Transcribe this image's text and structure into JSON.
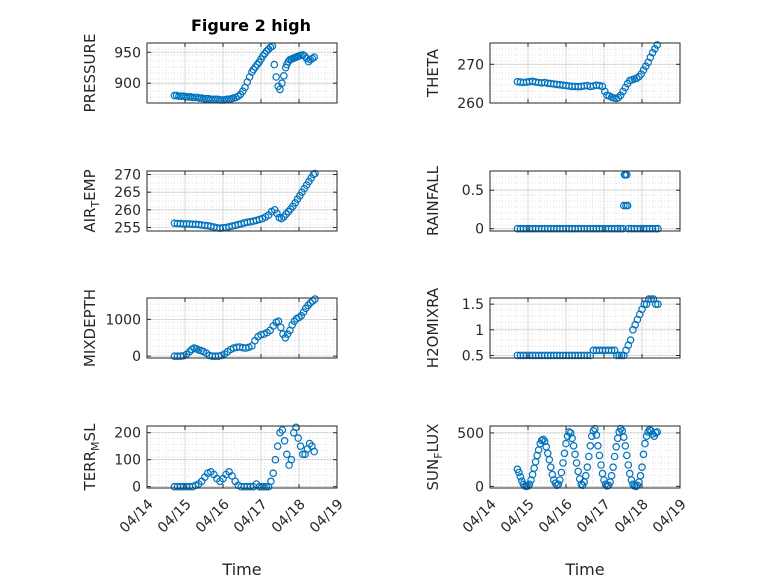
{
  "figure": {
    "title": "Figure 2 high"
  },
  "colors": {
    "marker": "#0072bd",
    "axis": "#262626",
    "grid": "#d9d9d9",
    "background": "#ffffff"
  },
  "chart_data": [
    {
      "type": "scatter",
      "id": "pressure",
      "title": "Figure 2 high",
      "ylabel": "PRESSURE",
      "ylim": [
        868,
        965
      ],
      "yticks": [
        900,
        950
      ],
      "xlim": [
        0,
        5
      ],
      "xticks": [],
      "xlabel": "",
      "grid": true,
      "minor_grid": true,
      "x": [
        0.72,
        0.78,
        0.84,
        0.9,
        0.96,
        1.02,
        1.08,
        1.14,
        1.2,
        1.26,
        1.32,
        1.38,
        1.44,
        1.5,
        1.56,
        1.62,
        1.68,
        1.74,
        1.8,
        1.86,
        1.92,
        1.98,
        2.04,
        2.1,
        2.16,
        2.22,
        2.28,
        2.34,
        2.4,
        2.46,
        2.52,
        2.58,
        2.64,
        2.7,
        2.76,
        2.8,
        2.85,
        2.9,
        2.95,
        3.0,
        3.05,
        3.1,
        3.15,
        3.2,
        3.25,
        3.3,
        3.35,
        3.4,
        3.45,
        3.5,
        3.55,
        3.6,
        3.65,
        3.68,
        3.72,
        3.76,
        3.8,
        3.84,
        3.88,
        3.92,
        3.96,
        4.0,
        4.05,
        4.1,
        4.15,
        4.2,
        4.25,
        4.3,
        4.35,
        4.4
      ],
      "y": [
        880,
        880,
        879,
        879,
        879,
        878,
        878,
        878,
        877,
        877,
        877,
        876,
        876,
        875,
        875,
        875,
        874,
        874,
        874,
        874,
        873,
        873,
        873,
        874,
        874,
        875,
        876,
        877,
        879,
        882,
        887,
        893,
        902,
        910,
        918,
        922,
        926,
        930,
        934,
        939,
        944,
        948,
        952,
        955,
        958,
        960,
        930,
        910,
        895,
        890,
        900,
        912,
        925,
        930,
        935,
        938,
        939,
        940,
        941,
        942,
        943,
        944,
        945,
        946,
        944,
        940,
        935,
        938,
        940,
        942
      ]
    },
    {
      "type": "scatter",
      "id": "theta",
      "ylabel": "THETA",
      "ylim": [
        260,
        275.5
      ],
      "yticks": [
        260,
        270
      ],
      "xlim": [
        0,
        5
      ],
      "xticks": [],
      "xlabel": "",
      "grid": true,
      "minor_grid": true,
      "x": [
        0.72,
        0.8,
        0.88,
        0.96,
        1.04,
        1.12,
        1.2,
        1.28,
        1.36,
        1.44,
        1.52,
        1.6,
        1.68,
        1.76,
        1.84,
        1.92,
        2.0,
        2.08,
        2.16,
        2.24,
        2.32,
        2.4,
        2.48,
        2.56,
        2.64,
        2.72,
        2.8,
        2.88,
        2.96,
        3.02,
        3.08,
        3.14,
        3.2,
        3.26,
        3.32,
        3.38,
        3.44,
        3.5,
        3.56,
        3.62,
        3.68,
        3.74,
        3.8,
        3.86,
        3.92,
        3.98,
        4.04,
        4.1,
        4.16,
        4.22,
        4.28,
        4.34,
        4.4
      ],
      "y": [
        265.5,
        265.4,
        265.3,
        265.4,
        265.5,
        265.6,
        265.4,
        265.3,
        265.2,
        265.3,
        265.1,
        265.0,
        264.9,
        264.8,
        264.7,
        264.6,
        264.5,
        264.4,
        264.3,
        264.3,
        264.2,
        264.3,
        264.4,
        264.5,
        264.3,
        264.4,
        264.6,
        264.5,
        264.3,
        263.0,
        262.0,
        261.8,
        261.5,
        261.3,
        261.2,
        261.4,
        262.0,
        263.0,
        264.0,
        265.0,
        265.8,
        266.0,
        266.2,
        266.4,
        266.8,
        267.5,
        268.5,
        269.5,
        270.5,
        271.8,
        273.0,
        274.0,
        275.0
      ]
    },
    {
      "type": "scatter",
      "id": "air_temp",
      "ylabel": "AIR",
      "ylabel_sub": "T",
      "ylabel_rest": "EMP",
      "ylim": [
        254,
        271
      ],
      "yticks": [
        255,
        260,
        265,
        270
      ],
      "xlim": [
        0,
        5
      ],
      "xticks": [],
      "xlabel": "",
      "grid": true,
      "minor_grid": true,
      "x": [
        0.72,
        0.8,
        0.88,
        0.96,
        1.04,
        1.12,
        1.2,
        1.28,
        1.36,
        1.44,
        1.52,
        1.6,
        1.68,
        1.76,
        1.84,
        1.92,
        2.0,
        2.08,
        2.16,
        2.24,
        2.32,
        2.4,
        2.48,
        2.56,
        2.64,
        2.72,
        2.8,
        2.88,
        2.96,
        3.04,
        3.12,
        3.2,
        3.28,
        3.36,
        3.42,
        3.48,
        3.54,
        3.6,
        3.66,
        3.72,
        3.78,
        3.84,
        3.9,
        3.96,
        4.02,
        4.08,
        4.14,
        4.2,
        4.26,
        4.32,
        4.38,
        4.42
      ],
      "y": [
        256.2,
        256.1,
        256.1,
        256.0,
        256.0,
        256.0,
        255.9,
        255.9,
        255.8,
        255.7,
        255.6,
        255.5,
        255.3,
        255.1,
        254.9,
        254.8,
        254.9,
        255.0,
        255.2,
        255.4,
        255.6,
        255.8,
        256.0,
        256.3,
        256.5,
        256.6,
        256.8,
        257.0,
        257.3,
        257.5,
        258.0,
        258.5,
        259.5,
        260.0,
        259.0,
        257.8,
        257.5,
        258.0,
        258.8,
        259.5,
        260.2,
        261.0,
        262.0,
        263.0,
        264.0,
        265.0,
        266.0,
        267.0,
        268.0,
        269.0,
        270.0,
        270.3
      ]
    },
    {
      "type": "scatter",
      "id": "rainfall",
      "ylabel": "RAINFALL",
      "ylim": [
        -0.03,
        0.75
      ],
      "yticks": [
        0,
        0.5
      ],
      "ytick_labels": [
        "0",
        "0.5"
      ],
      "xlim": [
        0,
        5
      ],
      "xticks": [],
      "xlabel": "",
      "grid": true,
      "minor_grid": true,
      "x": [
        0.72,
        0.8,
        0.88,
        0.96,
        1.04,
        1.12,
        1.2,
        1.28,
        1.36,
        1.44,
        1.52,
        1.6,
        1.68,
        1.76,
        1.84,
        1.92,
        2.0,
        2.08,
        2.16,
        2.24,
        2.32,
        2.4,
        2.48,
        2.56,
        2.64,
        2.72,
        2.8,
        2.88,
        2.96,
        3.04,
        3.12,
        3.2,
        3.28,
        3.36,
        3.44,
        3.5,
        3.52,
        3.54,
        3.56,
        3.58,
        3.6,
        3.62,
        3.64,
        3.72,
        3.8,
        3.88,
        3.96,
        4.04,
        4.12,
        4.2,
        4.28,
        4.36,
        4.42
      ],
      "y": [
        0,
        0,
        0,
        0,
        0,
        0,
        0,
        0,
        0,
        0,
        0,
        0,
        0,
        0,
        0,
        0,
        0,
        0,
        0,
        0,
        0,
        0,
        0,
        0,
        0,
        0,
        0,
        0,
        0,
        0,
        0,
        0,
        0,
        0,
        0,
        0,
        0.3,
        0.7,
        0.7,
        0.3,
        0.7,
        0.3,
        0,
        0,
        0,
        0,
        0,
        0,
        0,
        0,
        0,
        0,
        0
      ]
    },
    {
      "type": "scatter",
      "id": "mixdepth",
      "ylabel": "MIXDEPTH",
      "ylim": [
        -50,
        1580
      ],
      "yticks": [
        0,
        1000
      ],
      "xlim": [
        0,
        5
      ],
      "xticks": [],
      "xlabel": "",
      "grid": true,
      "minor_grid": true,
      "x": [
        0.72,
        0.8,
        0.88,
        0.96,
        1.04,
        1.12,
        1.18,
        1.24,
        1.3,
        1.36,
        1.42,
        1.48,
        1.56,
        1.64,
        1.72,
        1.8,
        1.88,
        1.96,
        2.04,
        2.12,
        2.2,
        2.28,
        2.36,
        2.44,
        2.52,
        2.6,
        2.68,
        2.76,
        2.84,
        2.92,
        3.0,
        3.08,
        3.16,
        3.24,
        3.32,
        3.4,
        3.46,
        3.52,
        3.58,
        3.64,
        3.7,
        3.76,
        3.82,
        3.88,
        3.94,
        4.0,
        4.06,
        4.12,
        4.18,
        4.24,
        4.3,
        4.36,
        4.42
      ],
      "y": [
        0,
        0,
        0,
        10,
        50,
        120,
        180,
        220,
        200,
        170,
        150,
        130,
        80,
        20,
        0,
        0,
        0,
        20,
        60,
        120,
        180,
        220,
        240,
        250,
        230,
        220,
        240,
        280,
        420,
        530,
        580,
        600,
        640,
        700,
        820,
        920,
        950,
        780,
        600,
        500,
        600,
        700,
        850,
        950,
        1020,
        1050,
        1100,
        1200,
        1300,
        1380,
        1450,
        1500,
        1550
      ]
    },
    {
      "type": "scatter",
      "id": "h2omixra",
      "ylabel": "H2OMIXRA",
      "ylim": [
        0.45,
        1.62
      ],
      "yticks": [
        0.5,
        1,
        1.5
      ],
      "ytick_labels": [
        "0.5",
        "1",
        "1.5"
      ],
      "xlim": [
        0,
        5
      ],
      "xticks": [],
      "xlabel": "",
      "grid": true,
      "minor_grid": true,
      "x": [
        0.72,
        0.8,
        0.88,
        0.96,
        1.04,
        1.12,
        1.2,
        1.28,
        1.36,
        1.44,
        1.52,
        1.6,
        1.68,
        1.76,
        1.84,
        1.92,
        2.0,
        2.08,
        2.16,
        2.24,
        2.32,
        2.4,
        2.48,
        2.56,
        2.64,
        2.72,
        2.8,
        2.88,
        2.96,
        3.04,
        3.12,
        3.2,
        3.28,
        3.34,
        3.4,
        3.46,
        3.52,
        3.58,
        3.64,
        3.7,
        3.76,
        3.82,
        3.88,
        3.94,
        4.0,
        4.06,
        4.12,
        4.18,
        4.24,
        4.3,
        4.36,
        4.42
      ],
      "y": [
        0.5,
        0.5,
        0.5,
        0.5,
        0.5,
        0.5,
        0.5,
        0.5,
        0.5,
        0.5,
        0.5,
        0.5,
        0.5,
        0.5,
        0.5,
        0.5,
        0.5,
        0.5,
        0.5,
        0.5,
        0.5,
        0.5,
        0.5,
        0.5,
        0.5,
        0.6,
        0.6,
        0.6,
        0.6,
        0.6,
        0.6,
        0.6,
        0.6,
        0.5,
        0.5,
        0.5,
        0.5,
        0.6,
        0.7,
        0.8,
        1.0,
        1.1,
        1.2,
        1.3,
        1.4,
        1.5,
        1.5,
        1.6,
        1.6,
        1.6,
        1.5,
        1.5
      ]
    },
    {
      "type": "scatter",
      "id": "terr_msl",
      "ylabel": "TERR",
      "ylabel_sub": "M",
      "ylabel_rest": "SL",
      "ylim": [
        -5,
        225
      ],
      "yticks": [
        0,
        100,
        200
      ],
      "xlim": [
        0,
        5
      ],
      "xticks": [
        0,
        1,
        2,
        3,
        4,
        5
      ],
      "xtick_labels": [
        "04/14",
        "04/15",
        "04/16",
        "04/17",
        "04/18",
        "04/19"
      ],
      "xlabel": "Time",
      "grid": true,
      "minor_grid": true,
      "x": [
        0.72,
        0.8,
        0.88,
        0.96,
        1.04,
        1.12,
        1.2,
        1.28,
        1.36,
        1.44,
        1.52,
        1.6,
        1.68,
        1.76,
        1.84,
        1.92,
        2.0,
        2.08,
        2.16,
        2.24,
        2.32,
        2.4,
        2.48,
        2.56,
        2.64,
        2.72,
        2.8,
        2.88,
        2.96,
        3.02,
        3.08,
        3.14,
        3.2,
        3.26,
        3.32,
        3.38,
        3.44,
        3.5,
        3.56,
        3.62,
        3.68,
        3.74,
        3.8,
        3.86,
        3.92,
        3.98,
        4.04,
        4.1,
        4.16,
        4.22,
        4.28,
        4.34,
        4.4
      ],
      "y": [
        0,
        0,
        0,
        0,
        0,
        0,
        0,
        5,
        10,
        20,
        35,
        50,
        55,
        45,
        30,
        20,
        30,
        45,
        55,
        40,
        20,
        5,
        0,
        0,
        0,
        0,
        0,
        10,
        0,
        0,
        0,
        0,
        0,
        20,
        50,
        100,
        150,
        200,
        210,
        170,
        120,
        80,
        100,
        200,
        220,
        180,
        150,
        120,
        120,
        140,
        160,
        150,
        130
      ]
    },
    {
      "type": "scatter",
      "id": "sun_flux",
      "ylabel": "SUN",
      "ylabel_sub": "F",
      "ylabel_rest": "LUX",
      "ylim": [
        -15,
        565
      ],
      "yticks": [
        0,
        500
      ],
      "xlim": [
        0,
        5
      ],
      "xticks": [
        0,
        1,
        2,
        3,
        4,
        5
      ],
      "xtick_labels": [
        "04/14",
        "04/15",
        "04/16",
        "04/17",
        "04/18",
        "04/19"
      ],
      "xlabel": "Time",
      "grid": true,
      "minor_grid": true,
      "x": [
        0.72,
        0.76,
        0.8,
        0.84,
        0.88,
        0.92,
        0.96,
        1.0,
        1.04,
        1.08,
        1.12,
        1.16,
        1.2,
        1.24,
        1.28,
        1.32,
        1.36,
        1.4,
        1.44,
        1.48,
        1.52,
        1.56,
        1.6,
        1.64,
        1.68,
        1.72,
        1.76,
        1.8,
        1.84,
        1.88,
        1.92,
        1.96,
        2.0,
        2.04,
        2.08,
        2.12,
        2.16,
        2.2,
        2.24,
        2.28,
        2.32,
        2.36,
        2.4,
        2.44,
        2.48,
        2.52,
        2.56,
        2.6,
        2.64,
        2.68,
        2.72,
        2.76,
        2.8,
        2.84,
        2.88,
        2.92,
        2.96,
        3.0,
        3.04,
        3.08,
        3.12,
        3.16,
        3.2,
        3.24,
        3.28,
        3.32,
        3.36,
        3.4,
        3.44,
        3.48,
        3.52,
        3.56,
        3.6,
        3.64,
        3.68,
        3.72,
        3.76,
        3.8,
        3.84,
        3.88,
        3.92,
        3.96,
        4.0,
        4.04,
        4.08,
        4.12,
        4.16,
        4.2,
        4.24,
        4.28,
        4.32,
        4.36,
        4.4
      ],
      "y": [
        160,
        130,
        90,
        50,
        20,
        5,
        0,
        5,
        20,
        60,
        110,
        170,
        230,
        290,
        340,
        400,
        430,
        440,
        420,
        370,
        310,
        250,
        180,
        110,
        60,
        30,
        10,
        20,
        60,
        130,
        220,
        310,
        400,
        470,
        510,
        500,
        450,
        380,
        300,
        220,
        140,
        70,
        20,
        10,
        40,
        100,
        180,
        280,
        380,
        470,
        520,
        540,
        480,
        380,
        290,
        200,
        120,
        60,
        20,
        5,
        10,
        40,
        100,
        180,
        280,
        370,
        450,
        510,
        540,
        520,
        460,
        380,
        290,
        200,
        120,
        60,
        20,
        5,
        0,
        10,
        40,
        100,
        180,
        300,
        400,
        470,
        510,
        530,
        520,
        490,
        470,
        500,
        510
      ]
    }
  ]
}
